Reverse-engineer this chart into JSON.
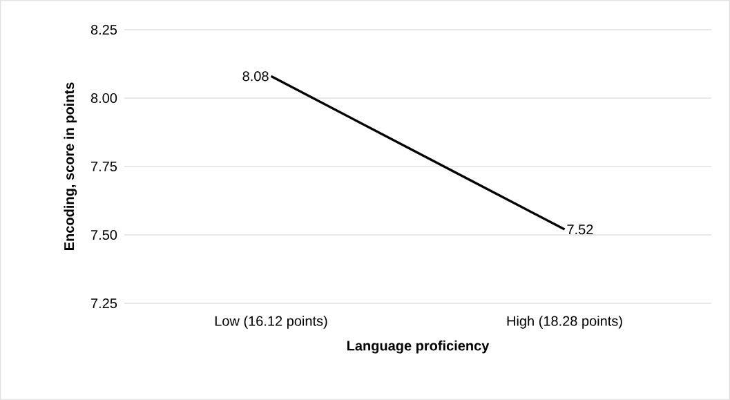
{
  "chart_data": {
    "type": "line",
    "categories": [
      "Low (16.12 points)",
      "High (18.28 points)"
    ],
    "xlabel": "Language proficiency",
    "ylabel": "Encoding, score in points",
    "series": [
      {
        "color": "#000000",
        "values": [
          8.08,
          7.52
        ],
        "value_labels": [
          "8.08",
          "7.52"
        ]
      }
    ],
    "ylim": [
      7.25,
      8.25
    ],
    "yticks": [
      {
        "value": 7.25,
        "label": "7.25"
      },
      {
        "value": 7.5,
        "label": "7.50"
      },
      {
        "value": 7.75,
        "label": "7.75"
      },
      {
        "value": 8,
        "label": "8.00"
      },
      {
        "value": 8.25,
        "label": "8.25"
      }
    ],
    "grid": "y",
    "marker": "none",
    "line_style": "solid"
  }
}
